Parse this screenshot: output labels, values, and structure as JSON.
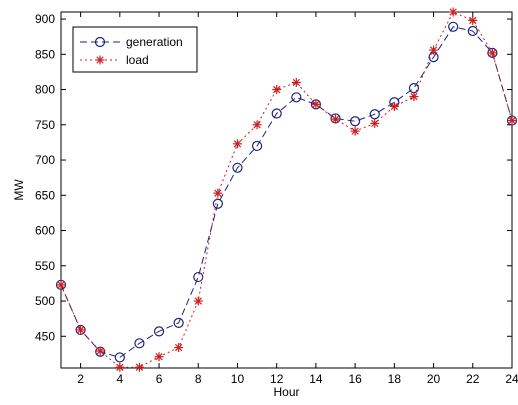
{
  "chart_data": {
    "type": "line",
    "title": "",
    "xlabel": "Hour",
    "ylabel": "MW",
    "xlim": [
      1,
      24
    ],
    "ylim": [
      405,
      910
    ],
    "grid": false,
    "legend": "top-left",
    "x_ticks": [
      2,
      4,
      6,
      8,
      10,
      12,
      14,
      16,
      18,
      20,
      22,
      24
    ],
    "y_ticks": [
      450,
      500,
      550,
      600,
      650,
      700,
      750,
      800,
      850,
      900
    ],
    "x": [
      1,
      2,
      3,
      4,
      5,
      6,
      7,
      8,
      9,
      10,
      11,
      12,
      13,
      14,
      15,
      16,
      17,
      18,
      19,
      20,
      21,
      22,
      23,
      24
    ],
    "series": [
      {
        "name": "generation",
        "color": "#1a237e",
        "line_style": "dashed",
        "marker": "circle",
        "values": [
          523,
          459,
          428,
          420,
          440,
          457,
          469,
          534,
          638,
          689,
          720,
          766,
          789,
          779,
          759,
          755,
          765,
          782,
          802,
          846,
          889,
          883,
          852,
          756
        ]
      },
      {
        "name": "load",
        "color": "#cc1f1f",
        "line_style": "dotted",
        "marker": "star",
        "values": [
          523,
          459,
          429,
          406,
          406,
          421,
          434,
          500,
          653,
          723,
          750,
          800,
          810,
          779,
          758,
          741,
          752,
          776,
          790,
          856,
          910,
          898,
          852,
          756
        ]
      }
    ]
  }
}
